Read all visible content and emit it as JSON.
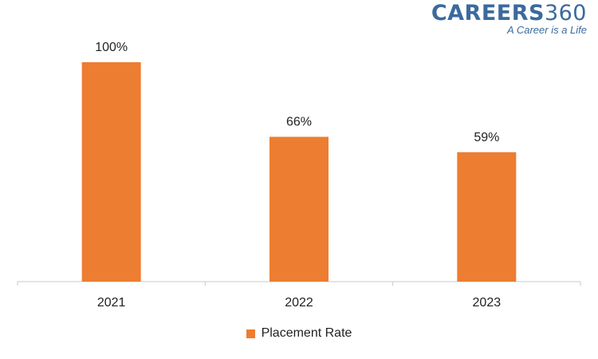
{
  "brand": {
    "name_letters": "CAREERS",
    "name_number": "360",
    "tagline": "A Career is a Life",
    "color": "#3b6a9e"
  },
  "chart_data": {
    "type": "bar",
    "categories": [
      "2021",
      "2022",
      "2023"
    ],
    "series": [
      {
        "name": "Placement Rate",
        "values": [
          100,
          66,
          59
        ],
        "color": "#ed7d31"
      }
    ],
    "data_labels": [
      "100%",
      "66%",
      "59%"
    ],
    "ylim": [
      0,
      100
    ],
    "grid": false,
    "legend_position": "bottom"
  }
}
